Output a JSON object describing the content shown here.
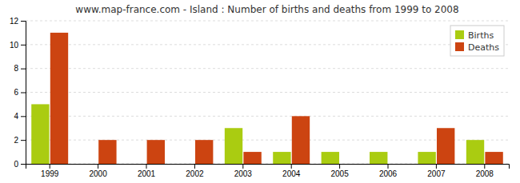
{
  "chart_data": {
    "type": "bar",
    "title": "www.map-france.com - Island : Number of births and deaths from 1999 to 2008",
    "categories": [
      "1999",
      "2000",
      "2001",
      "2002",
      "2003",
      "2004",
      "2005",
      "2006",
      "2007",
      "2008"
    ],
    "series": [
      {
        "name": "Births",
        "color": "#aacc11",
        "values": [
          5,
          0,
          0,
          0,
          3,
          1,
          1,
          1,
          1,
          2
        ]
      },
      {
        "name": "Deaths",
        "color": "#cc4411",
        "values": [
          11,
          2,
          2,
          2,
          1,
          4,
          0,
          0,
          3,
          1
        ]
      }
    ],
    "ylim": [
      0,
      12
    ],
    "yticks": [
      0,
      2,
      4,
      6,
      8,
      10,
      12
    ],
    "grid": true,
    "legend": "upper right"
  }
}
